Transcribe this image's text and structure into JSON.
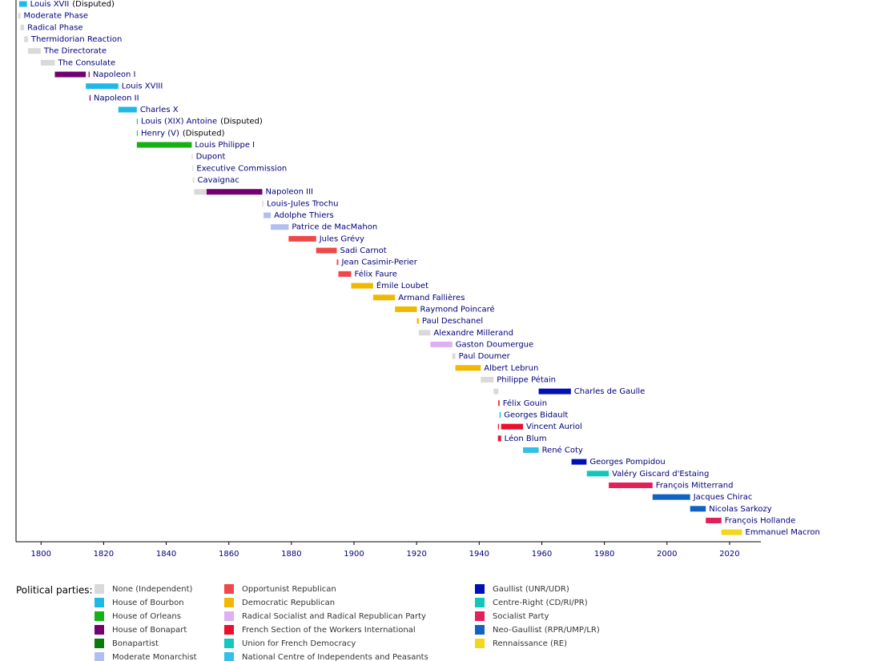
{
  "chart_data": {
    "type": "timeline",
    "xlim": [
      1792,
      2030
    ],
    "xticks": [
      1800,
      1820,
      1840,
      1860,
      1880,
      1900,
      1920,
      1940,
      1960,
      1980,
      2000,
      2020
    ],
    "rows": [
      {
        "name": "Louis XVII",
        "note": "(Disputed)",
        "segments": [
          {
            "start": 1793.0,
            "end": 1795.5,
            "party": "House of Bourbon"
          }
        ]
      },
      {
        "name": "Moderate Phase",
        "segments": [
          {
            "start": 1792.7,
            "end": 1793.4,
            "party": "None (Independent)"
          }
        ]
      },
      {
        "name": "Radical Phase",
        "segments": [
          {
            "start": 1793.4,
            "end": 1794.6,
            "party": "None (Independent)"
          }
        ]
      },
      {
        "name": "Thermidorian Reaction",
        "segments": [
          {
            "start": 1794.6,
            "end": 1795.8,
            "party": "None (Independent)"
          }
        ]
      },
      {
        "name": "The Directorate",
        "segments": [
          {
            "start": 1795.8,
            "end": 1799.9,
            "party": "None (Independent)"
          }
        ]
      },
      {
        "name": "The Consulate",
        "segments": [
          {
            "start": 1799.9,
            "end": 1804.4,
            "party": "None (Independent)"
          }
        ]
      },
      {
        "name": "Napoleon I",
        "segments": [
          {
            "start": 1804.4,
            "end": 1814.3,
            "party": "House of Bonapart"
          },
          {
            "start": 1815.2,
            "end": 1815.5,
            "party": "House of Bonapart"
          }
        ]
      },
      {
        "name": "Louis XVIII",
        "segments": [
          {
            "start": 1814.3,
            "end": 1824.7,
            "party": "House of Bourbon"
          }
        ]
      },
      {
        "name": "Napoleon II",
        "segments": [
          {
            "start": 1815.5,
            "end": 1815.6,
            "party": "House of Bonapart"
          }
        ]
      },
      {
        "name": "Charles X",
        "segments": [
          {
            "start": 1824.7,
            "end": 1830.6,
            "party": "House of Bourbon"
          }
        ]
      },
      {
        "name": "Louis (XIX) Antoine",
        "note": "(Disputed)",
        "segments": [
          {
            "start": 1830.6,
            "end": 1830.7,
            "party": "House of Bourbon"
          }
        ]
      },
      {
        "name": "Henry (V)",
        "note": "(Disputed)",
        "segments": [
          {
            "start": 1830.6,
            "end": 1830.7,
            "party": "House of Bourbon"
          }
        ]
      },
      {
        "name": "Louis Philippe I",
        "segments": [
          {
            "start": 1830.6,
            "end": 1848.15,
            "party": "House of Orleans"
          }
        ]
      },
      {
        "name": "Dupont",
        "segments": [
          {
            "start": 1848.15,
            "end": 1848.35,
            "party": "None (Independent)"
          }
        ]
      },
      {
        "name": "Executive Commission",
        "segments": [
          {
            "start": 1848.35,
            "end": 1848.5,
            "party": "None (Independent)"
          }
        ]
      },
      {
        "name": "Cavaignac",
        "segments": [
          {
            "start": 1848.5,
            "end": 1848.95,
            "party": "None (Independent)"
          }
        ]
      },
      {
        "name": "Napoleon III",
        "segments": [
          {
            "start": 1848.95,
            "end": 1852.9,
            "party": "None (Independent)"
          },
          {
            "start": 1852.9,
            "end": 1870.7,
            "party": "House of Bonapart"
          }
        ]
      },
      {
        "name": "Louis-Jules Trochu",
        "segments": [
          {
            "start": 1870.7,
            "end": 1871.1,
            "party": "None (Independent)"
          }
        ]
      },
      {
        "name": "Adolphe Thiers",
        "segments": [
          {
            "start": 1871.1,
            "end": 1873.4,
            "party": "Moderate Monarchist"
          }
        ]
      },
      {
        "name": "Patrice de MacMahon",
        "segments": [
          {
            "start": 1873.4,
            "end": 1879.1,
            "party": "Moderate Monarchist"
          }
        ]
      },
      {
        "name": "Jules Grévy",
        "segments": [
          {
            "start": 1879.1,
            "end": 1887.9,
            "party": "Opportunist Republican"
          }
        ]
      },
      {
        "name": "Sadi Carnot",
        "segments": [
          {
            "start": 1887.9,
            "end": 1894.5,
            "party": "Opportunist Republican"
          }
        ]
      },
      {
        "name": "Jean Casimir-Perier",
        "segments": [
          {
            "start": 1894.5,
            "end": 1895.0,
            "party": "Opportunist Republican"
          }
        ]
      },
      {
        "name": "Félix Faure",
        "segments": [
          {
            "start": 1895.0,
            "end": 1899.1,
            "party": "Opportunist Republican"
          }
        ]
      },
      {
        "name": "Émile Loubet",
        "segments": [
          {
            "start": 1899.1,
            "end": 1906.1,
            "party": "Democratic Republican"
          }
        ]
      },
      {
        "name": "Armand Fallières",
        "segments": [
          {
            "start": 1906.1,
            "end": 1913.1,
            "party": "Democratic Republican"
          }
        ]
      },
      {
        "name": "Raymond Poincaré",
        "segments": [
          {
            "start": 1913.1,
            "end": 1920.1,
            "party": "Democratic Republican"
          }
        ]
      },
      {
        "name": "Paul Deschanel",
        "segments": [
          {
            "start": 1920.1,
            "end": 1920.7,
            "party": "Democratic Republican"
          }
        ]
      },
      {
        "name": "Alexandre Millerand",
        "segments": [
          {
            "start": 1920.7,
            "end": 1924.4,
            "party": "None (Independent)"
          }
        ]
      },
      {
        "name": "Gaston Doumergue",
        "segments": [
          {
            "start": 1924.4,
            "end": 1931.4,
            "party": "Radical Socialist and Radical Republican Party"
          }
        ]
      },
      {
        "name": "Paul Doumer",
        "segments": [
          {
            "start": 1931.4,
            "end": 1932.4,
            "party": "None (Independent)"
          }
        ]
      },
      {
        "name": "Albert Lebrun",
        "segments": [
          {
            "start": 1932.4,
            "end": 1940.5,
            "party": "Democratic Republican"
          }
        ]
      },
      {
        "name": "Philippe Pétain",
        "segments": [
          {
            "start": 1940.5,
            "end": 1944.6,
            "party": "None (Independent)"
          }
        ]
      },
      {
        "name": "Charles de Gaulle",
        "segments": [
          {
            "start": 1944.6,
            "end": 1946.1,
            "party": "None (Independent)"
          },
          {
            "start": 1959.0,
            "end": 1969.3,
            "party": "Gaullist (UNR/UDR)"
          }
        ]
      },
      {
        "name": "Félix Gouin",
        "segments": [
          {
            "start": 1946.1,
            "end": 1946.5,
            "party": "French Section of the Workers International"
          }
        ]
      },
      {
        "name": "Georges Bidault",
        "segments": [
          {
            "start": 1946.5,
            "end": 1946.9,
            "party": "Union for French Democracy"
          }
        ]
      },
      {
        "name": "Vincent Auriol",
        "segments": [
          {
            "start": 1946.0,
            "end": 1946.2,
            "party": "French Section of the Workers International"
          },
          {
            "start": 1947.0,
            "end": 1954.0,
            "party": "French Section of the Workers International"
          }
        ]
      },
      {
        "name": "Léon Blum",
        "segments": [
          {
            "start": 1946.0,
            "end": 1947.0,
            "party": "French Section of the Workers International"
          }
        ]
      },
      {
        "name": "René Coty",
        "segments": [
          {
            "start": 1954.0,
            "end": 1959.0,
            "party": "National Centre of Independents and Peasants"
          }
        ]
      },
      {
        "name": "Georges Pompidou",
        "segments": [
          {
            "start": 1969.5,
            "end": 1974.3,
            "party": "Gaullist (UNR/UDR)"
          }
        ]
      },
      {
        "name": "Valéry Giscard d'Estaing",
        "segments": [
          {
            "start": 1974.4,
            "end": 1981.4,
            "party": "Centre-Right (CD/RI/PR)"
          }
        ]
      },
      {
        "name": "François Mitterrand",
        "segments": [
          {
            "start": 1981.4,
            "end": 1995.4,
            "party": "Socialist Party"
          }
        ]
      },
      {
        "name": "Jacques Chirac",
        "segments": [
          {
            "start": 1995.4,
            "end": 2007.4,
            "party": "Neo-Gaullist (RPR/UMP/LR)"
          }
        ]
      },
      {
        "name": "Nicolas Sarkozy",
        "segments": [
          {
            "start": 2007.4,
            "end": 2012.4,
            "party": "Neo-Gaullist (RPR/UMP/LR)"
          }
        ]
      },
      {
        "name": "François Hollande",
        "segments": [
          {
            "start": 2012.4,
            "end": 2017.4,
            "party": "Socialist Party"
          }
        ]
      },
      {
        "name": "Emmanuel Macron",
        "segments": [
          {
            "start": 2017.4,
            "end": 2024.0,
            "party": "Rennaissance (RE)"
          }
        ]
      }
    ],
    "legend_title": "Political parties:",
    "parties": [
      {
        "name": "None (Independent)",
        "color": "#d9d9d9"
      },
      {
        "name": "House of Bourbon",
        "color": "#1fb8e8"
      },
      {
        "name": "House of Orleans",
        "color": "#14b014"
      },
      {
        "name": "House of Bonapart",
        "color": "#730073"
      },
      {
        "name": "Bonapartist",
        "color": "#0a7a0a"
      },
      {
        "name": "Moderate Monarchist",
        "color": "#afbff0"
      },
      {
        "name": "Opportunist Republican",
        "color": "#f04848"
      },
      {
        "name": "Democratic Republican",
        "color": "#f0b800"
      },
      {
        "name": "Radical Socialist and Radical Republican Party",
        "color": "#ddb0f3"
      },
      {
        "name": "French Section of the Workers International",
        "color": "#e8102c"
      },
      {
        "name": "Union for French Democracy",
        "color": "#14c8c0"
      },
      {
        "name": "National Centre of Independents and Peasants",
        "color": "#32c0e8"
      },
      {
        "name": "Gaullist (UNR/UDR)",
        "color": "#0010b4"
      },
      {
        "name": "Centre-Right (CD/RI/PR)",
        "color": "#10c8b8"
      },
      {
        "name": "Socialist Party",
        "color": "#e2205a"
      },
      {
        "name": "Neo-Gaullist (RPR/UMP/LR)",
        "color": "#1262c2"
      },
      {
        "name": "Rennaissance (RE)",
        "color": "#f2d620"
      }
    ]
  }
}
